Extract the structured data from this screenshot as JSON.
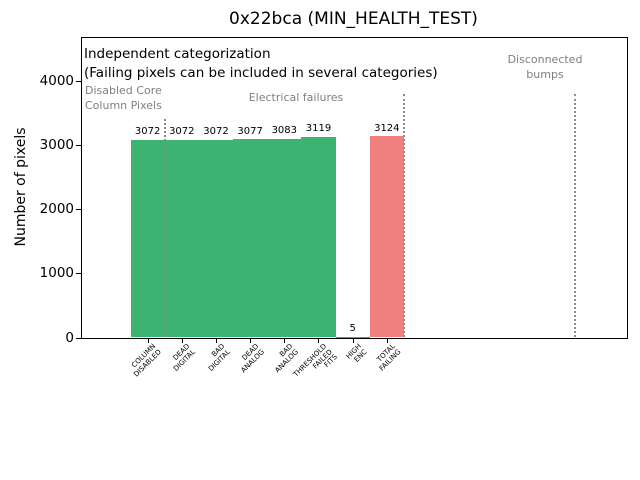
{
  "chart_data": {
    "type": "bar",
    "title": "0x22bca (MIN_HEALTH_TEST)",
    "ylabel": "Number of pixels",
    "xlabel": "",
    "categories": [
      "COLUMN\nDISABLED",
      "DEAD\nDIGITAL",
      "BAD\nDIGITAL",
      "DEAD\nANALOG",
      "BAD\nANALOG",
      "THRESHOLD\nFAILED\nFITS",
      "HIGH\nENC",
      "TOTAL\nFAILING"
    ],
    "values": [
      3072,
      3072,
      3072,
      3077,
      3083,
      3119,
      5,
      3124
    ],
    "value_labels": [
      "3072",
      "3072",
      "3072",
      "3077",
      "3083",
      "3119",
      "5",
      "3124"
    ],
    "bar_colors": [
      "#3cb371",
      "#3cb371",
      "#3cb371",
      "#3cb371",
      "#3cb371",
      "#3cb371",
      "#3cb371",
      "#f08080"
    ],
    "yticks": [
      0,
      1000,
      2000,
      3000,
      4000
    ],
    "ylim": [
      0,
      4670
    ],
    "xlim": [
      -1.45,
      14.5
    ],
    "grid": false,
    "legend": null,
    "separators": [
      {
        "x": 1,
        "ymax": 3400
      },
      {
        "x": 8,
        "ymax": 3780
      },
      {
        "x": 13,
        "ymax": 3780
      }
    ],
    "annotations": {
      "note_line1": "Independent categorization",
      "note_line2": "(Failing pixels can be included in several categories)",
      "sections": [
        {
          "id": "disabled-core",
          "label": "Disabled Core\nColumn Pixels"
        },
        {
          "id": "electrical",
          "label": "Electrical failures"
        },
        {
          "id": "disconnected",
          "label": "Disconnected\nbumps"
        }
      ]
    },
    "colors": {
      "bar_green": "#3cb371",
      "bar_red": "#f08080",
      "section_text_gray": "#7f7f7f",
      "separator_gray": "#8c8c8c"
    }
  }
}
